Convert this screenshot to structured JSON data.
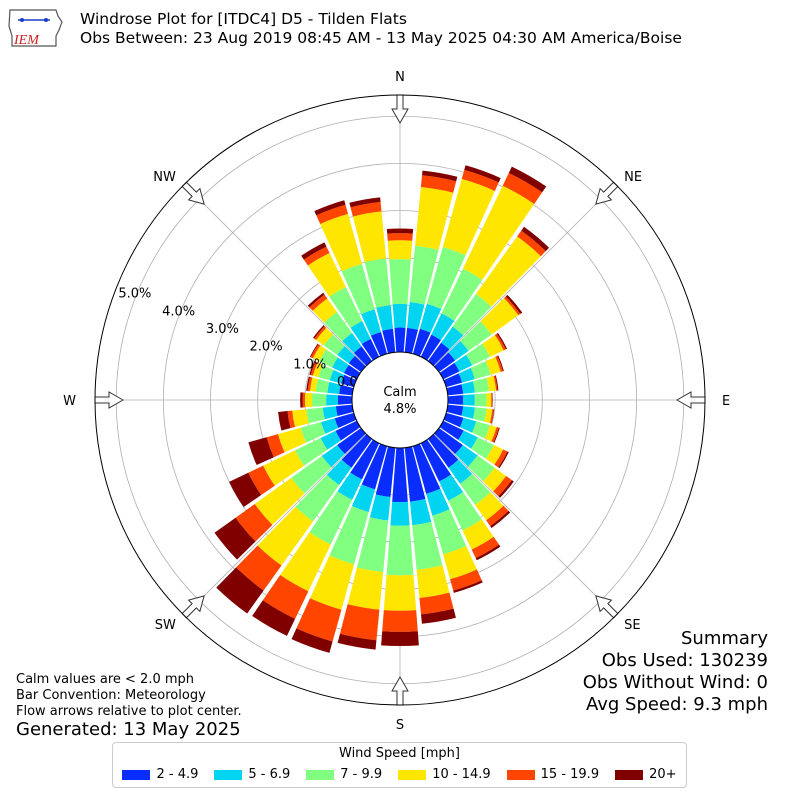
{
  "header": {
    "title_line1": "Windrose Plot for [ITDC4] D5 - Tilden Flats",
    "title_line2": "Obs Between: 23 Aug 2019 08:45 AM - 13 May 2025 04:30 AM America/Boise",
    "logo_text": "IEM"
  },
  "summary": {
    "heading": "Summary",
    "obs_used": "Obs Used: 130239",
    "obs_without_wind": "Obs Without Wind: 0",
    "avg_speed": "Avg Speed: 9.3 mph"
  },
  "notes": {
    "calm_note": "Calm values are < 2.0 mph",
    "bar_convention": "Bar Convention: Meteorology",
    "flow_arrows": "Flow arrows relative to plot center.",
    "generated": "Generated: 13 May 2025"
  },
  "legend": {
    "title": "Wind Speed [mph]",
    "items": [
      {
        "label": "2 - 4.9",
        "color": "#0a2dff"
      },
      {
        "label": "5 - 6.9",
        "color": "#00d4f0"
      },
      {
        "label": "7 - 9.9",
        "color": "#80ff80"
      },
      {
        "label": "10 - 14.9",
        "color": "#ffe600"
      },
      {
        "label": "15 - 19.9",
        "color": "#ff4500"
      },
      {
        "label": "20+",
        "color": "#800000"
      }
    ]
  },
  "chart_data": {
    "type": "windrose",
    "calm_label": "Calm",
    "calm_value": "4.8%",
    "r_ticks": [
      "0.0%",
      "1.0%",
      "2.0%",
      "3.0%",
      "4.0%",
      "5.0%"
    ],
    "r_tick_values": [
      0,
      1,
      2,
      3,
      4,
      5
    ],
    "rmax": 5.45,
    "compass_labels": [
      "N",
      "NE",
      "E",
      "SE",
      "S",
      "SW",
      "W",
      "NW"
    ],
    "directions_deg": [
      0,
      10,
      20,
      30,
      40,
      50,
      60,
      70,
      80,
      90,
      100,
      110,
      120,
      130,
      140,
      150,
      160,
      170,
      180,
      190,
      200,
      210,
      220,
      230,
      240,
      250,
      260,
      270,
      280,
      290,
      300,
      310,
      320,
      330,
      340,
      350
    ],
    "series": [
      {
        "name": "2 - 4.9",
        "values": [
          0.52,
          0.52,
          0.55,
          0.52,
          0.48,
          0.42,
          0.38,
          0.35,
          0.33,
          0.32,
          0.33,
          0.38,
          0.48,
          0.62,
          0.75,
          0.9,
          1.05,
          1.15,
          1.15,
          1.05,
          0.95,
          0.85,
          0.75,
          0.62,
          0.5,
          0.42,
          0.35,
          0.3,
          0.28,
          0.28,
          0.3,
          0.32,
          0.38,
          0.42,
          0.48,
          0.5
        ]
      },
      {
        "name": "5 - 6.9",
        "values": [
          0.5,
          0.55,
          0.55,
          0.5,
          0.42,
          0.35,
          0.3,
          0.28,
          0.25,
          0.25,
          0.25,
          0.28,
          0.33,
          0.38,
          0.42,
          0.45,
          0.48,
          0.5,
          0.5,
          0.5,
          0.5,
          0.48,
          0.45,
          0.4,
          0.35,
          0.3,
          0.28,
          0.25,
          0.25,
          0.25,
          0.28,
          0.3,
          0.35,
          0.42,
          0.5,
          0.5
        ]
      },
      {
        "name": "7 - 9.9",
        "values": [
          0.95,
          1.2,
          1.25,
          1.05,
          0.85,
          0.6,
          0.42,
          0.35,
          0.3,
          0.25,
          0.25,
          0.3,
          0.38,
          0.45,
          0.55,
          0.7,
          0.85,
          0.95,
          1.05,
          1.1,
          1.15,
          1.05,
          0.95,
          0.8,
          0.6,
          0.45,
          0.35,
          0.3,
          0.25,
          0.25,
          0.3,
          0.35,
          0.55,
          0.8,
          1.0,
          1.0
        ]
      },
      {
        "name": "10 - 14.9",
        "values": [
          0.4,
          1.25,
          1.5,
          1.95,
          1.5,
          0.7,
          0.32,
          0.22,
          0.15,
          0.1,
          0.12,
          0.15,
          0.22,
          0.3,
          0.4,
          0.45,
          0.55,
          0.6,
          0.75,
          0.8,
          1.0,
          1.1,
          1.15,
          0.95,
          0.75,
          0.5,
          0.3,
          0.15,
          0.12,
          0.12,
          0.15,
          0.2,
          0.35,
          0.8,
          1.1,
          1.0
        ]
      },
      {
        "name": "15 - 19.9",
        "values": [
          0.15,
          0.25,
          0.2,
          0.3,
          0.15,
          0.05,
          0.05,
          0.05,
          0.03,
          0.02,
          0.03,
          0.05,
          0.1,
          0.15,
          0.15,
          0.2,
          0.25,
          0.35,
          0.45,
          0.65,
          0.7,
          0.65,
          0.65,
          0.5,
          0.35,
          0.25,
          0.1,
          0.05,
          0.05,
          0.05,
          0.05,
          0.05,
          0.1,
          0.15,
          0.2,
          0.2
        ]
      },
      {
        "name": "20+",
        "values": [
          0.1,
          0.1,
          0.1,
          0.15,
          0.1,
          0.05,
          0.03,
          0.02,
          0.02,
          0.01,
          0.01,
          0.02,
          0.03,
          0.05,
          0.05,
          0.05,
          0.05,
          0.2,
          0.3,
          0.2,
          0.25,
          0.4,
          0.6,
          0.55,
          0.45,
          0.4,
          0.2,
          0.05,
          0.03,
          0.03,
          0.02,
          0.03,
          0.05,
          0.1,
          0.1,
          0.1
        ]
      }
    ]
  }
}
